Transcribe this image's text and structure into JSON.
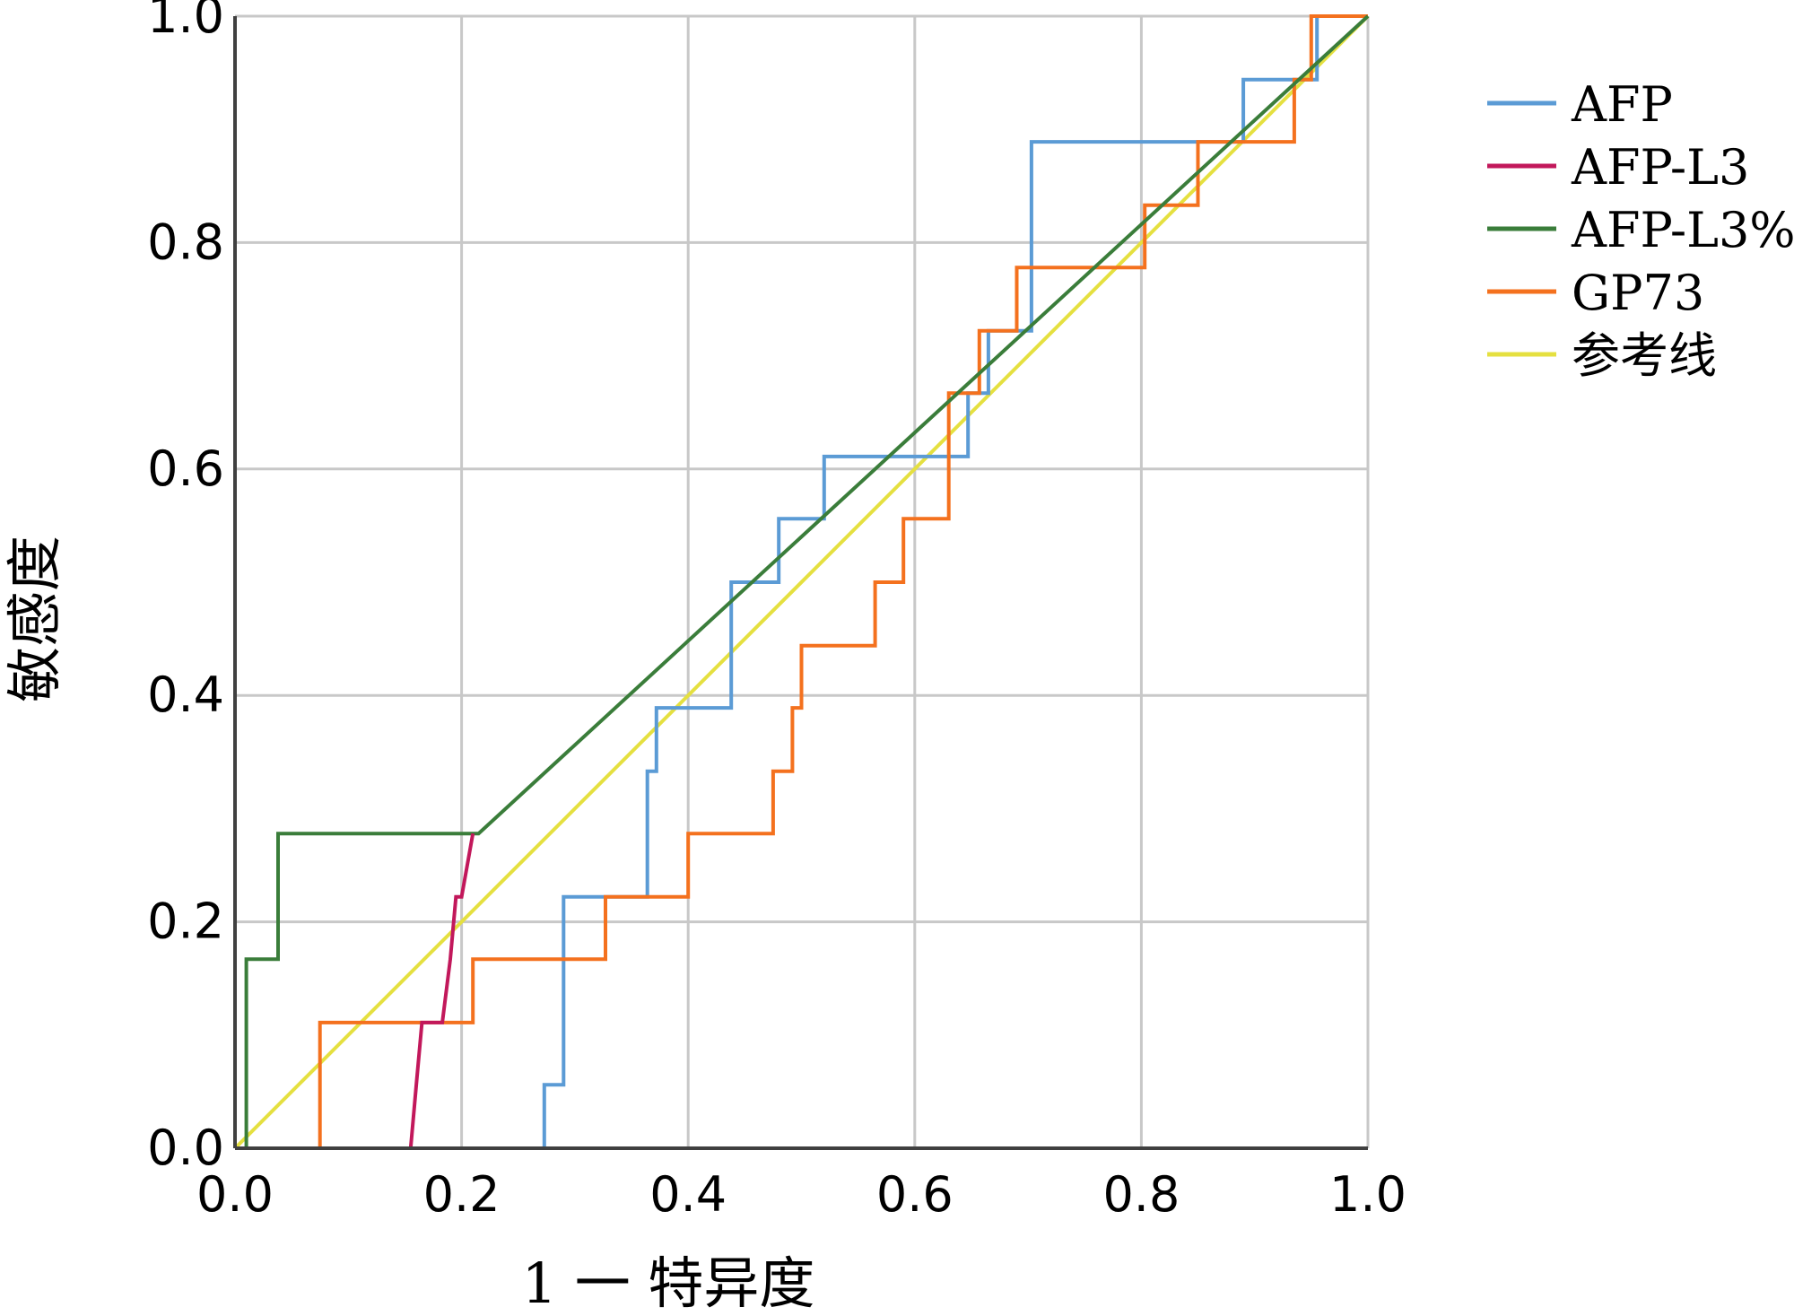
{
  "chart_data": {
    "type": "line",
    "title": "",
    "xlabel": "1 一 特异度",
    "ylabel": "敏感度",
    "xlim": [
      0,
      1
    ],
    "ylim": [
      0,
      1
    ],
    "grid": true,
    "legend_position": "right",
    "x_ticks": [
      "0.0",
      "0.2",
      "0.4",
      "0.6",
      "0.8",
      "1.0"
    ],
    "y_ticks": [
      "0.0",
      "0.2",
      "0.4",
      "0.6",
      "0.8",
      "1.0"
    ],
    "series": [
      {
        "name": "AFP",
        "color": "#5b9bd5",
        "step": true,
        "points": [
          [
            0,
            0
          ],
          [
            0.273,
            0
          ],
          [
            0.273,
            0.056
          ],
          [
            0.29,
            0.056
          ],
          [
            0.29,
            0.222
          ],
          [
            0.364,
            0.222
          ],
          [
            0.364,
            0.333
          ],
          [
            0.372,
            0.333
          ],
          [
            0.372,
            0.389
          ],
          [
            0.438,
            0.389
          ],
          [
            0.438,
            0.5
          ],
          [
            0.48,
            0.5
          ],
          [
            0.48,
            0.556
          ],
          [
            0.52,
            0.556
          ],
          [
            0.52,
            0.611
          ],
          [
            0.647,
            0.611
          ],
          [
            0.647,
            0.667
          ],
          [
            0.665,
            0.667
          ],
          [
            0.665,
            0.722
          ],
          [
            0.703,
            0.722
          ],
          [
            0.703,
            0.889
          ],
          [
            0.89,
            0.889
          ],
          [
            0.89,
            0.944
          ],
          [
            0.955,
            0.944
          ],
          [
            0.955,
            1
          ],
          [
            1,
            1
          ]
        ]
      },
      {
        "name": "AFP-L3",
        "color": "#c2185b",
        "step": false,
        "points": [
          [
            0,
            0
          ],
          [
            0.155,
            0
          ],
          [
            0.16,
            0.056
          ],
          [
            0.165,
            0.111
          ],
          [
            0.183,
            0.111
          ],
          [
            0.19,
            0.167
          ],
          [
            0.195,
            0.222
          ],
          [
            0.2,
            0.222
          ],
          [
            0.21,
            0.278
          ]
        ]
      },
      {
        "name": "AFP-L3%",
        "color": "#3a7d3a",
        "step": false,
        "points": [
          [
            0,
            0
          ],
          [
            0.01,
            0
          ],
          [
            0.01,
            0.167
          ],
          [
            0.038,
            0.167
          ],
          [
            0.038,
            0.278
          ],
          [
            0.215,
            0.278
          ],
          [
            1,
            1
          ]
        ]
      },
      {
        "name": "GP73",
        "color": "#f4711e",
        "step": true,
        "points": [
          [
            0,
            0
          ],
          [
            0.075,
            0
          ],
          [
            0.075,
            0.111
          ],
          [
            0.21,
            0.111
          ],
          [
            0.21,
            0.167
          ],
          [
            0.327,
            0.167
          ],
          [
            0.327,
            0.222
          ],
          [
            0.4,
            0.222
          ],
          [
            0.4,
            0.278
          ],
          [
            0.475,
            0.278
          ],
          [
            0.475,
            0.333
          ],
          [
            0.492,
            0.333
          ],
          [
            0.492,
            0.389
          ],
          [
            0.5,
            0.389
          ],
          [
            0.5,
            0.444
          ],
          [
            0.565,
            0.444
          ],
          [
            0.565,
            0.5
          ],
          [
            0.59,
            0.5
          ],
          [
            0.59,
            0.556
          ],
          [
            0.63,
            0.556
          ],
          [
            0.63,
            0.667
          ],
          [
            0.657,
            0.667
          ],
          [
            0.657,
            0.722
          ],
          [
            0.69,
            0.722
          ],
          [
            0.69,
            0.778
          ],
          [
            0.803,
            0.778
          ],
          [
            0.803,
            0.833
          ],
          [
            0.85,
            0.833
          ],
          [
            0.85,
            0.889
          ],
          [
            0.935,
            0.889
          ],
          [
            0.935,
            0.944
          ],
          [
            0.95,
            0.944
          ],
          [
            0.95,
            1
          ],
          [
            1,
            1
          ]
        ]
      },
      {
        "name": "参考线",
        "color": "#e5e040",
        "step": false,
        "points": [
          [
            0,
            0
          ],
          [
            1,
            1
          ]
        ]
      }
    ]
  }
}
